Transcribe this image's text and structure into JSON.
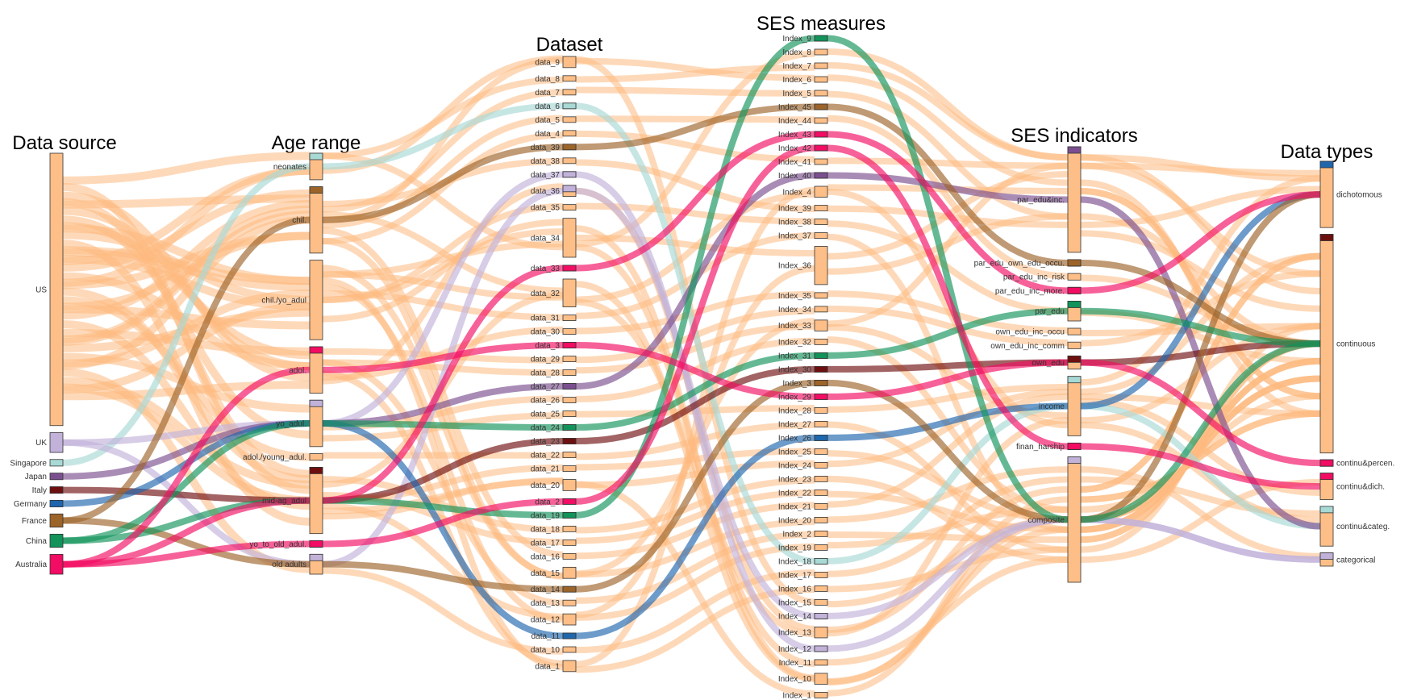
{
  "chart_data": {
    "type": "sankey",
    "colors": {
      "default": "#fdba7f",
      "Singapore": "#a8d9d5",
      "UK": "#c2b2da",
      "Japan": "#7b4f8f",
      "Italy": "#6e0f0f",
      "Germany": "#1f66ad",
      "France": "#9c6429",
      "China": "#11935a",
      "Australia": "#f20c63",
      "node_fill": "#fdbf87"
    },
    "columns": [
      {
        "title": "Data source",
        "nodes": [
          {
            "name": "US",
            "size": 330
          },
          {
            "name": "UK",
            "size": 24
          },
          {
            "name": "Singapore",
            "size": 8
          },
          {
            "name": "Japan",
            "size": 8
          },
          {
            "name": "Italy",
            "size": 8
          },
          {
            "name": "Germany",
            "size": 8
          },
          {
            "name": "France",
            "size": 16
          },
          {
            "name": "China",
            "size": 16
          },
          {
            "name": "Australia",
            "size": 24
          }
        ]
      },
      {
        "title": "Age range",
        "nodes": [
          {
            "name": "neonates",
            "size": 32
          },
          {
            "name": "chil.",
            "size": 80
          },
          {
            "name": "chil./yo_adul",
            "size": 96
          },
          {
            "name": "adol.",
            "size": 56
          },
          {
            "name": "yo_adul.",
            "size": 56
          },
          {
            "name": "adol./young_adul.",
            "size": 8
          },
          {
            "name": "mid-ag_adul",
            "size": 80
          },
          {
            "name": "yo_to_old_adul.",
            "size": 8
          },
          {
            "name": "old adults",
            "size": 24
          }
        ]
      },
      {
        "title": "Dataset",
        "nodes": [
          {
            "name": "data_9",
            "size": 16
          },
          {
            "name": "data_8",
            "size": 8
          },
          {
            "name": "data_7",
            "size": 8
          },
          {
            "name": "data_6",
            "size": 8
          },
          {
            "name": "data_5",
            "size": 8
          },
          {
            "name": "data_4",
            "size": 8
          },
          {
            "name": "data_39",
            "size": 8
          },
          {
            "name": "data_38",
            "size": 8
          },
          {
            "name": "data_37",
            "size": 8
          },
          {
            "name": "data_36",
            "size": 16
          },
          {
            "name": "data_35",
            "size": 8
          },
          {
            "name": "data_34",
            "size": 56
          },
          {
            "name": "data_33",
            "size": 8
          },
          {
            "name": "data_32",
            "size": 40
          },
          {
            "name": "data_31",
            "size": 8
          },
          {
            "name": "data_30",
            "size": 8
          },
          {
            "name": "data_3",
            "size": 8
          },
          {
            "name": "data_29",
            "size": 8
          },
          {
            "name": "data_28",
            "size": 8
          },
          {
            "name": "data_27",
            "size": 8
          },
          {
            "name": "data_26",
            "size": 8
          },
          {
            "name": "data_25",
            "size": 8
          },
          {
            "name": "data_24",
            "size": 8
          },
          {
            "name": "data_23",
            "size": 8
          },
          {
            "name": "data_22",
            "size": 8
          },
          {
            "name": "data_21",
            "size": 8
          },
          {
            "name": "data_20",
            "size": 16
          },
          {
            "name": "data_2",
            "size": 8
          },
          {
            "name": "data_19",
            "size": 8
          },
          {
            "name": "data_18",
            "size": 8
          },
          {
            "name": "data_17",
            "size": 8
          },
          {
            "name": "data_16",
            "size": 8
          },
          {
            "name": "data_15",
            "size": 16
          },
          {
            "name": "data_14",
            "size": 8
          },
          {
            "name": "data_13",
            "size": 8
          },
          {
            "name": "data_12",
            "size": 16
          },
          {
            "name": "data_11",
            "size": 8
          },
          {
            "name": "data_10",
            "size": 8
          },
          {
            "name": "data_1",
            "size": 16
          }
        ]
      },
      {
        "title": "SES measures",
        "nodes": [
          {
            "name": "Index_9",
            "size": 8
          },
          {
            "name": "Index_8",
            "size": 8
          },
          {
            "name": "Index_7",
            "size": 8
          },
          {
            "name": "Index_6",
            "size": 8
          },
          {
            "name": "Index_5",
            "size": 8
          },
          {
            "name": "Index_45",
            "size": 8
          },
          {
            "name": "Index_44",
            "size": 8
          },
          {
            "name": "Index_43",
            "size": 8
          },
          {
            "name": "Index_42",
            "size": 8
          },
          {
            "name": "Index_41",
            "size": 8
          },
          {
            "name": "Index_40",
            "size": 8
          },
          {
            "name": "Index_4",
            "size": 16
          },
          {
            "name": "Index_39",
            "size": 8
          },
          {
            "name": "Index_38",
            "size": 8
          },
          {
            "name": "Index_37",
            "size": 8
          },
          {
            "name": "Index_36",
            "size": 56
          },
          {
            "name": "Index_35",
            "size": 8
          },
          {
            "name": "Index_34",
            "size": 8
          },
          {
            "name": "Index_33",
            "size": 16
          },
          {
            "name": "Index_32",
            "size": 8
          },
          {
            "name": "Index_31",
            "size": 8
          },
          {
            "name": "Index_30",
            "size": 8
          },
          {
            "name": "Index_3",
            "size": 8
          },
          {
            "name": "Index_29",
            "size": 8
          },
          {
            "name": "Index_28",
            "size": 8
          },
          {
            "name": "Index_27",
            "size": 8
          },
          {
            "name": "Index_26",
            "size": 8
          },
          {
            "name": "Index_25",
            "size": 8
          },
          {
            "name": "Index_24",
            "size": 8
          },
          {
            "name": "Index_23",
            "size": 8
          },
          {
            "name": "Index_22",
            "size": 8
          },
          {
            "name": "Index_21",
            "size": 8
          },
          {
            "name": "Index_20",
            "size": 8
          },
          {
            "name": "Index_2",
            "size": 8
          },
          {
            "name": "Index_19",
            "size": 8
          },
          {
            "name": "Index_18",
            "size": 8
          },
          {
            "name": "Index_17",
            "size": 8
          },
          {
            "name": "Index_16",
            "size": 8
          },
          {
            "name": "Index_15",
            "size": 8
          },
          {
            "name": "Index_14",
            "size": 8
          },
          {
            "name": "Index_13",
            "size": 16
          },
          {
            "name": "Index_12",
            "size": 8
          },
          {
            "name": "Index_11",
            "size": 8
          },
          {
            "name": "Index_10",
            "size": 16
          },
          {
            "name": "Index_1",
            "size": 8
          }
        ]
      },
      {
        "title": "SES indicators",
        "nodes": [
          {
            "name": "par_edu&inc.",
            "size": 128
          },
          {
            "name": "par_edu_own_edu_occu.",
            "size": 8
          },
          {
            "name": "par_edu_inc_risk",
            "size": 8
          },
          {
            "name": "par_edu_inc_more.",
            "size": 8
          },
          {
            "name": "par_edu",
            "size": 24
          },
          {
            "name": "own_edu_inc_occu",
            "size": 8
          },
          {
            "name": "own_edu_inc_comm",
            "size": 8
          },
          {
            "name": "own_edu",
            "size": 16
          },
          {
            "name": "income",
            "size": 72
          },
          {
            "name": "finan_harship",
            "size": 8
          },
          {
            "name": "composite",
            "size": 152
          }
        ]
      },
      {
        "title": "Data types",
        "nodes": [
          {
            "name": "dichotomous",
            "size": 80
          },
          {
            "name": "continuous",
            "size": 264
          },
          {
            "name": "continu&percen.",
            "size": 8
          },
          {
            "name": "continu&dich.",
            "size": 32
          },
          {
            "name": "continu&categ.",
            "size": 48
          },
          {
            "name": "categorical",
            "size": 16
          }
        ]
      }
    ],
    "colored_paths": [
      {
        "source": "Singapore",
        "path": [
          "Singapore",
          "neonates",
          "data_6",
          "Index_18",
          "income",
          "continu&categ."
        ]
      },
      {
        "source": "UK",
        "path": [
          "UK",
          "yo_adul.",
          "data_37",
          "Index_12",
          "composite",
          "categorical"
        ]
      },
      {
        "source": "UK",
        "path": [
          "UK",
          "old adults",
          "data_36",
          "Index_14",
          "composite",
          "categorical"
        ]
      },
      {
        "source": "Japan",
        "path": [
          "Japan",
          "yo_adul.",
          "data_27",
          "Index_40",
          "par_edu&inc.",
          "continu&categ."
        ]
      },
      {
        "source": "Italy",
        "path": [
          "Italy",
          "mid-ag_adul",
          "data_23",
          "Index_30",
          "own_edu",
          "continuous"
        ]
      },
      {
        "source": "Germany",
        "path": [
          "Germany",
          "yo_adul.",
          "data_11",
          "Index_26",
          "income",
          "dichotomous"
        ]
      },
      {
        "source": "France",
        "path": [
          "France",
          "chil.",
          "data_39",
          "Index_45",
          "par_edu_own_edu_occu.",
          "continuous"
        ]
      },
      {
        "source": "France",
        "path": [
          "France",
          "old adults",
          "data_14",
          "Index_3",
          "composite",
          "dichotomous"
        ]
      },
      {
        "source": "China",
        "path": [
          "China",
          "yo_adul.",
          "data_24",
          "Index_31",
          "par_edu",
          "continuous"
        ]
      },
      {
        "source": "China",
        "path": [
          "China",
          "mid-ag_adul",
          "data_19",
          "Index_9",
          "composite",
          "continuous"
        ]
      },
      {
        "source": "Australia",
        "path": [
          "Australia",
          "adol.",
          "data_3",
          "Index_29",
          "own_edu",
          "continu&percen."
        ]
      },
      {
        "source": "Australia",
        "path": [
          "Australia",
          "mid-ag_adul",
          "data_33",
          "Index_43",
          "par_edu_inc_more.",
          "dichotomous"
        ]
      },
      {
        "source": "Australia",
        "path": [
          "Australia",
          "yo_to_old_adul.",
          "data_2",
          "Index_42",
          "finan_harship",
          "continu&dich."
        ]
      }
    ],
    "us_routes": [
      [
        "neonates",
        "data_9",
        "Index_6",
        "par_edu&inc.",
        "dichotomous"
      ],
      [
        "neonates",
        "data_8",
        "Index_7",
        "par_edu&inc.",
        "continuous"
      ],
      [
        "chil.",
        "data_7",
        "Index_5",
        "par_edu&inc.",
        "continuous"
      ],
      [
        "chil.",
        "data_5",
        "Index_44",
        "par_edu_inc_risk",
        "continuous"
      ],
      [
        "chil.",
        "data_4",
        "Index_41",
        "par_edu&inc.",
        "dichotomous"
      ],
      [
        "chil.",
        "data_38",
        "Index_39",
        "par_edu&inc.",
        "continuous"
      ],
      [
        "chil./yo_adul",
        "data_35",
        "Index_38",
        "par_edu",
        "continuous"
      ],
      [
        "chil./yo_adul",
        "data_34",
        "Index_36",
        "par_edu&inc.",
        "continuous"
      ],
      [
        "chil./yo_adul",
        "data_32",
        "Index_4",
        "income",
        "continuous"
      ],
      [
        "chil./yo_adul",
        "data_31",
        "Index_37",
        "composite",
        "continuous"
      ],
      [
        "adol.",
        "data_30",
        "Index_35",
        "own_edu_inc_occu",
        "continuous"
      ],
      [
        "adol.",
        "data_29",
        "Index_34",
        "own_edu_inc_comm",
        "continuous"
      ],
      [
        "adol.",
        "data_28",
        "Index_33",
        "income",
        "continu&dich."
      ],
      [
        "yo_adul.",
        "data_26",
        "Index_32",
        "composite",
        "continuous"
      ],
      [
        "yo_adul.",
        "data_25",
        "Index_28",
        "income",
        "dichotomous"
      ],
      [
        "adol./young_adul.",
        "data_22",
        "Index_27",
        "composite",
        "continuous"
      ],
      [
        "mid-ag_adul",
        "data_21",
        "Index_25",
        "composite",
        "continuous"
      ],
      [
        "mid-ag_adul",
        "data_20",
        "Index_24",
        "income",
        "continu&categ."
      ],
      [
        "mid-ag_adul",
        "data_18",
        "Index_23",
        "composite",
        "continuous"
      ],
      [
        "mid-ag_adul",
        "data_17",
        "Index_22",
        "composite",
        "continuous"
      ],
      [
        "chil.",
        "data_16",
        "Index_21",
        "income",
        "continuous"
      ],
      [
        "chil./yo_adul",
        "data_15",
        "Index_20",
        "composite",
        "continu&categ."
      ],
      [
        "adol.",
        "data_13",
        "Index_2",
        "composite",
        "continuous"
      ],
      [
        "mid-ag_adul",
        "data_12",
        "Index_19",
        "composite",
        "continuous"
      ],
      [
        "old adults",
        "data_10",
        "Index_17",
        "composite",
        "categorical"
      ],
      [
        "chil./yo_adul",
        "data_1",
        "Index_16",
        "composite",
        "continuous"
      ],
      [
        "chil.",
        "data_9",
        "Index_15",
        "composite",
        "continuous"
      ],
      [
        "adol.",
        "data_36",
        "Index_13",
        "composite",
        "continu&dich."
      ],
      [
        "chil./yo_adul",
        "data_34",
        "Index_11",
        "composite",
        "continuous"
      ],
      [
        "chil.",
        "data_32",
        "Index_10",
        "composite",
        "continuous"
      ],
      [
        "mid-ag_adul",
        "data_20",
        "Index_1",
        "composite",
        "continuous"
      ],
      [
        "neonates",
        "data_34",
        "Index_8",
        "par_edu&inc.",
        "dichotomous"
      ],
      [
        "chil./yo_adul",
        "data_12",
        "Index_36",
        "par_edu&inc.",
        "continuous"
      ],
      [
        "adol.",
        "data_1",
        "Index_4",
        "par_edu&inc.",
        "continuous"
      ],
      [
        "chil.",
        "data_15",
        "Index_33",
        "par_edu&inc.",
        "continuous"
      ],
      [
        "mid-ag_adul",
        "data_32",
        "Index_13",
        "income",
        "continuous"
      ],
      [
        "chil./yo_adul",
        "data_34",
        "Index_10",
        "composite",
        "continuous"
      ]
    ]
  }
}
